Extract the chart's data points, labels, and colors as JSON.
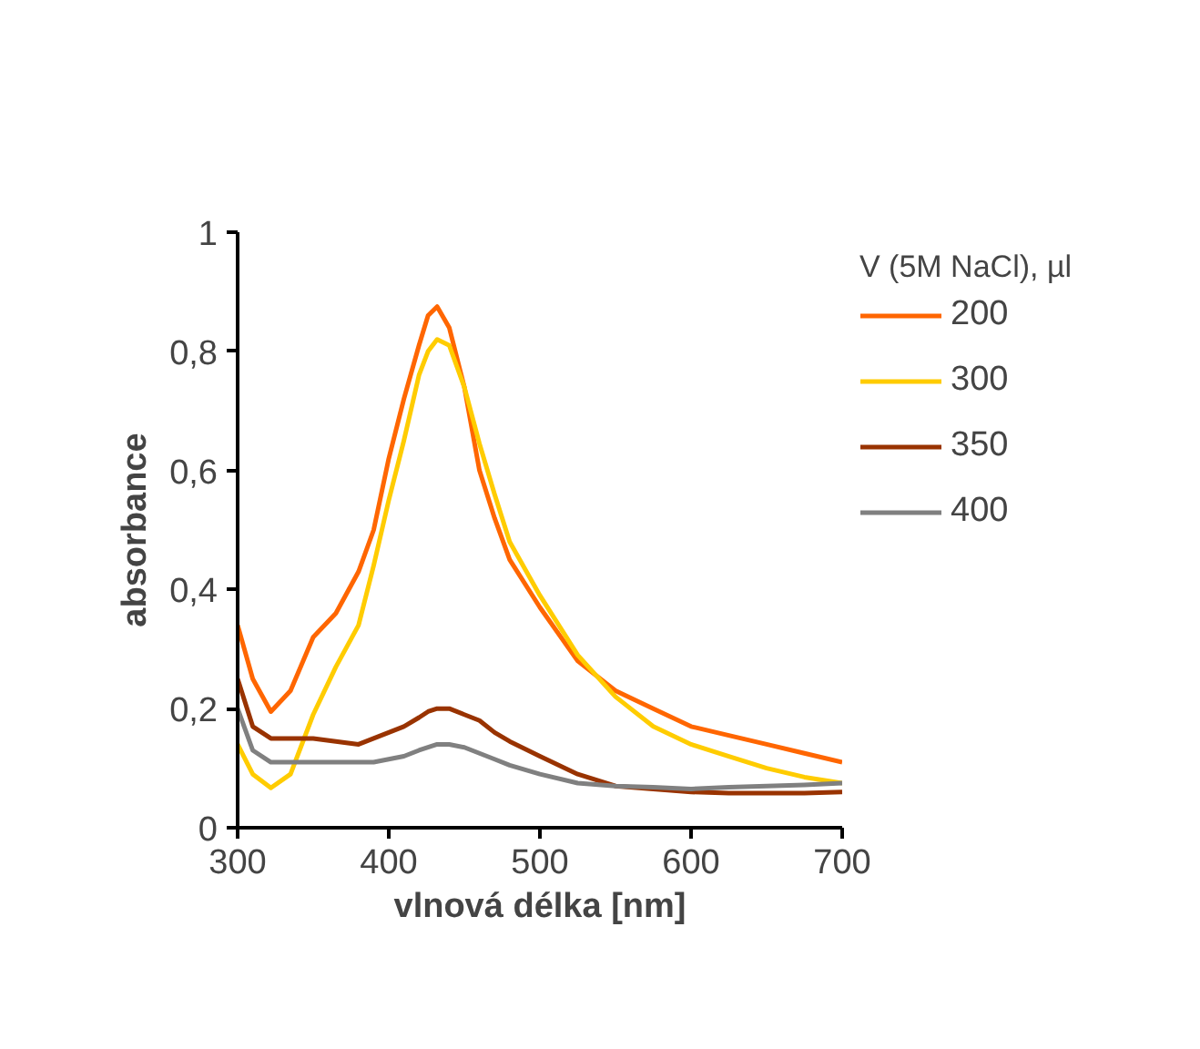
{
  "chart_data": {
    "type": "line",
    "xlabel": "vlnová délka [nm]",
    "ylabel": "absorbance",
    "legend_title": "V (5M NaCl), µl",
    "legend": "right",
    "grid": false,
    "xlim": [
      300,
      700
    ],
    "xticks": [
      300,
      400,
      500,
      600,
      700
    ],
    "ylim": [
      0,
      1
    ],
    "yticks": [
      0,
      {
        "value": 0.2,
        "label": "0,2"
      },
      {
        "value": 0.4,
        "label": "0,4"
      },
      {
        "value": 0.6,
        "label": "0,6"
      },
      {
        "value": 0.8,
        "label": "0,8"
      },
      1
    ],
    "x": [
      300,
      310,
      322,
      335,
      350,
      365,
      380,
      390,
      400,
      410,
      420,
      426,
      432,
      440,
      450,
      460,
      470,
      480,
      500,
      525,
      550,
      575,
      600,
      625,
      650,
      675,
      700
    ],
    "series": [
      {
        "name": "200",
        "color": "#ff6600",
        "values": [
          0.34,
          0.25,
          0.195,
          0.23,
          0.32,
          0.36,
          0.43,
          0.5,
          0.62,
          0.72,
          0.81,
          0.86,
          0.875,
          0.84,
          0.74,
          0.6,
          0.52,
          0.45,
          0.37,
          0.28,
          0.23,
          0.2,
          0.17,
          0.155,
          0.14,
          0.125,
          0.11
        ]
      },
      {
        "name": "300",
        "color": "#ffcc00",
        "values": [
          0.14,
          0.09,
          0.067,
          0.09,
          0.19,
          0.27,
          0.34,
          0.44,
          0.55,
          0.65,
          0.76,
          0.8,
          0.82,
          0.81,
          0.74,
          0.645,
          0.56,
          0.48,
          0.39,
          0.29,
          0.22,
          0.17,
          0.14,
          0.12,
          0.1,
          0.085,
          0.075
        ]
      },
      {
        "name": "350",
        "color": "#993300",
        "values": [
          0.25,
          0.17,
          0.15,
          0.15,
          0.15,
          0.145,
          0.14,
          0.15,
          0.16,
          0.17,
          0.185,
          0.195,
          0.2,
          0.2,
          0.19,
          0.18,
          0.16,
          0.145,
          0.12,
          0.09,
          0.07,
          0.065,
          0.06,
          0.058,
          0.058,
          0.058,
          0.06
        ]
      },
      {
        "name": "400",
        "color": "#808080",
        "values": [
          0.2,
          0.13,
          0.11,
          0.11,
          0.11,
          0.11,
          0.11,
          0.11,
          0.115,
          0.12,
          0.13,
          0.135,
          0.14,
          0.14,
          0.135,
          0.125,
          0.115,
          0.105,
          0.09,
          0.075,
          0.07,
          0.068,
          0.065,
          0.068,
          0.07,
          0.072,
          0.075
        ]
      }
    ]
  }
}
